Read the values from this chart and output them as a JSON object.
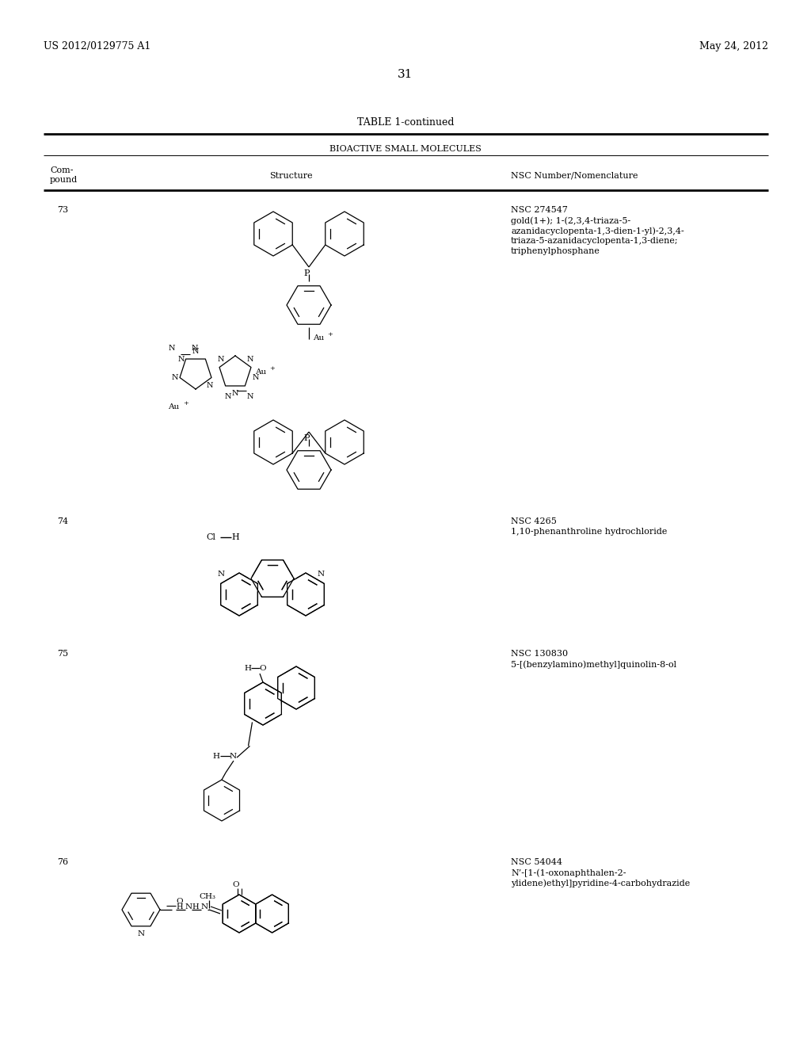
{
  "bg_color": "#ffffff",
  "header_left": "US 2012/0129775 A1",
  "header_right": "May 24, 2012",
  "page_number": "31",
  "table_title": "TABLE 1-continued",
  "table_subtitle": "BIOACTIVE SMALL MOLECULES",
  "c73_nsc": "NSC 274547",
  "c73_name1": "gold(1+); 1-(2,3,4-triaza-5-",
  "c73_name2": "azanidacyclopenta-1,3-dien-1-yl)-2,3,4-",
  "c73_name3": "triaza-5-azanidacyclopenta-1,3-diene;",
  "c73_name4": "triphenylphosphane",
  "c74_nsc": "NSC 4265",
  "c74_name1": "1,10-phenanthroline hydrochloride",
  "c75_nsc": "NSC 130830",
  "c75_name1": "5-[(benzylamino)methyl]quinolin-8-ol",
  "c76_nsc": "NSC 54044",
  "c76_name1": "N’-[1-(1-oxonaphthalen-2-",
  "c76_name2": "ylidene)ethyl]pyridine-4-carbohydrazide"
}
